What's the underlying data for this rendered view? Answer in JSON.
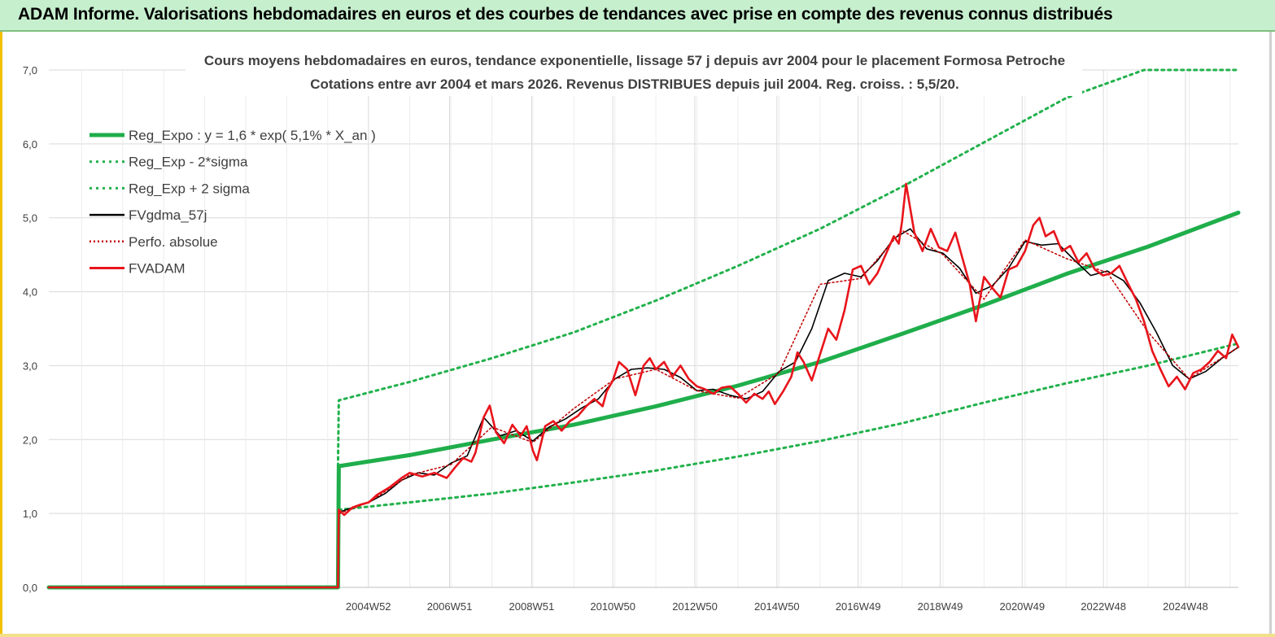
{
  "banner": {
    "title": "ADAM Informe. Valorisations hebdomadaires en euros et des courbes de tendances avec prise en compte des revenus connus distribués"
  },
  "colors": {
    "reg_expo": "#1fae4b",
    "sigma": "#22b14c",
    "fvgdma": "#000000",
    "perfo": "#c00000",
    "fvadam": "#e8141b",
    "grid": "#d9d9d9"
  },
  "chart_data": {
    "type": "line",
    "title": "Cours moyens hebdomadaires en euros, tendance exponentielle, lissage 57 j depuis avr 2004 pour le placement Formosa Petroche",
    "subtitle": "Cotations entre avr 2004 et mars 2026. Revenus DISTRIBUES depuis juil 2004. Reg. croiss. : 5,5/20.",
    "xlabel": "",
    "ylabel": "",
    "x_range": [
      1997.2,
      2026.2
    ],
    "ylim": [
      0,
      7
    ],
    "y_ticks": [
      0,
      1,
      2,
      3,
      4,
      5,
      6,
      7
    ],
    "y_tick_labels": [
      "0,0",
      "1,0",
      "2,0",
      "3,0",
      "4,0",
      "5,0",
      "6,0",
      "7,0"
    ],
    "x_ticks": [
      {
        "label": "2004W52",
        "x": 2004.99
      },
      {
        "label": "2006W51",
        "x": 2006.97
      },
      {
        "label": "2008W51",
        "x": 2008.97
      },
      {
        "label": "2010W50",
        "x": 2010.95
      },
      {
        "label": "2012W50",
        "x": 2012.95
      },
      {
        "label": "2014W50",
        "x": 2014.95
      },
      {
        "label": "2016W49",
        "x": 2016.93
      },
      {
        "label": "2018W49",
        "x": 2018.93
      },
      {
        "label": "2020W49",
        "x": 2020.93
      },
      {
        "label": "2022W48",
        "x": 2022.91
      },
      {
        "label": "2024W48",
        "x": 2024.91
      }
    ],
    "grid": true,
    "legend_position": "top-left",
    "series": [
      {
        "name": "Reg_Expo : y = 1,6 * exp( 5,1% *  X_an )",
        "style": "solid-thick",
        "x": [
          1997.2,
          2004.25,
          2004.27,
          2006.0,
          2008.0,
          2010.0,
          2012.0,
          2014.0,
          2016.0,
          2018.0,
          2020.0,
          2022.0,
          2024.0,
          2026.2
        ],
        "y": [
          0,
          0,
          1.64,
          1.79,
          2.0,
          2.2,
          2.45,
          2.73,
          3.05,
          3.43,
          3.82,
          4.24,
          4.61,
          5.07
        ]
      },
      {
        "name": "Reg_Exp - 2*sigma",
        "style": "dotted",
        "x": [
          2004.27,
          2006.0,
          2008.0,
          2010.0,
          2012.0,
          2014.0,
          2016.0,
          2018.0,
          2020.0,
          2022.0,
          2024.0,
          2026.2
        ],
        "y": [
          1.05,
          1.15,
          1.27,
          1.42,
          1.58,
          1.77,
          1.98,
          2.22,
          2.5,
          2.76,
          3.0,
          3.3
        ]
      },
      {
        "name": "Reg_Exp + 2 sigma",
        "style": "dotted",
        "x": [
          2004.25,
          2004.27,
          2006.0,
          2008.0,
          2010.0,
          2012.0,
          2014.0,
          2016.0,
          2018.0,
          2020.0,
          2022.0,
          2023.9,
          2026.2
        ],
        "y": [
          1.64,
          2.53,
          2.78,
          3.1,
          3.45,
          3.88,
          4.35,
          4.85,
          5.42,
          6.02,
          6.62,
          7.0,
          7.0
        ]
      },
      {
        "name": "FVgdma_57j",
        "style": "solid-thin",
        "x": [
          2004.3,
          2004.6,
          2005.0,
          2005.4,
          2005.8,
          2006.2,
          2006.6,
          2007.0,
          2007.4,
          2007.8,
          2008.2,
          2008.6,
          2009.0,
          2009.4,
          2009.8,
          2010.2,
          2010.6,
          2011.0,
          2011.4,
          2011.8,
          2012.2,
          2012.6,
          2013.0,
          2013.4,
          2013.8,
          2014.2,
          2014.6,
          2015.0,
          2015.4,
          2015.8,
          2016.2,
          2016.6,
          2017.0,
          2017.4,
          2017.8,
          2018.2,
          2018.6,
          2019.0,
          2019.4,
          2019.8,
          2020.2,
          2020.6,
          2021.0,
          2021.4,
          2021.8,
          2022.2,
          2022.6,
          2023.0,
          2023.4,
          2023.8,
          2024.2,
          2024.6,
          2025.0,
          2025.4,
          2025.8,
          2026.2
        ],
        "y": [
          1.02,
          1.08,
          1.15,
          1.27,
          1.45,
          1.55,
          1.52,
          1.68,
          1.78,
          2.3,
          2.05,
          2.12,
          1.98,
          2.17,
          2.28,
          2.43,
          2.55,
          2.82,
          2.95,
          2.97,
          2.95,
          2.84,
          2.66,
          2.68,
          2.6,
          2.55,
          2.65,
          2.92,
          3.05,
          3.5,
          4.15,
          4.25,
          4.2,
          4.42,
          4.72,
          4.85,
          4.58,
          4.52,
          4.32,
          3.98,
          4.08,
          4.32,
          4.68,
          4.63,
          4.65,
          4.43,
          4.22,
          4.28,
          4.15,
          3.85,
          3.45,
          3.0,
          2.82,
          2.92,
          3.1,
          3.25
        ]
      },
      {
        "name": "Perfo. absolue",
        "style": "dotted-dark",
        "x": [
          2004.3,
          2005.0,
          2006.0,
          2007.0,
          2008.0,
          2009.0,
          2010.0,
          2011.0,
          2012.0,
          2013.0,
          2014.0,
          2015.0,
          2016.0,
          2017.0,
          2018.0,
          2019.0,
          2020.0,
          2021.0,
          2022.0,
          2023.0,
          2024.0,
          2025.0,
          2026.2
        ],
        "y": [
          1.0,
          1.15,
          1.52,
          1.66,
          2.17,
          1.96,
          2.42,
          2.82,
          2.95,
          2.66,
          2.56,
          2.9,
          4.1,
          4.18,
          4.83,
          4.5,
          3.9,
          4.7,
          4.45,
          4.26,
          3.45,
          2.82,
          3.25
        ]
      },
      {
        "name": "FVADAM",
        "style": "solid-thick-red",
        "x": [
          1997.2,
          2004.25,
          2004.27,
          2004.4,
          2004.6,
          2004.8,
          2005.0,
          2005.2,
          2005.5,
          2005.8,
          2006.0,
          2006.3,
          2006.6,
          2006.9,
          2007.1,
          2007.3,
          2007.5,
          2007.6,
          2007.8,
          2007.95,
          2008.1,
          2008.3,
          2008.5,
          2008.7,
          2008.85,
          2009.0,
          2009.1,
          2009.3,
          2009.5,
          2009.7,
          2009.9,
          2010.1,
          2010.3,
          2010.5,
          2010.7,
          2010.8,
          2010.95,
          2011.1,
          2011.3,
          2011.5,
          2011.7,
          2011.85,
          2012.0,
          2012.2,
          2012.4,
          2012.6,
          2012.8,
          2013.0,
          2013.2,
          2013.4,
          2013.6,
          2013.8,
          2014.0,
          2014.2,
          2014.4,
          2014.6,
          2014.75,
          2014.9,
          2015.1,
          2015.3,
          2015.45,
          2015.6,
          2015.8,
          2016.0,
          2016.2,
          2016.4,
          2016.6,
          2016.8,
          2017.0,
          2017.2,
          2017.4,
          2017.6,
          2017.8,
          2017.92,
          2018.0,
          2018.1,
          2018.3,
          2018.5,
          2018.7,
          2018.9,
          2019.1,
          2019.3,
          2019.5,
          2019.65,
          2019.8,
          2020.0,
          2020.2,
          2020.4,
          2020.6,
          2020.8,
          2021.0,
          2021.2,
          2021.35,
          2021.5,
          2021.7,
          2021.9,
          2022.1,
          2022.3,
          2022.5,
          2022.7,
          2022.9,
          2023.1,
          2023.3,
          2023.5,
          2023.7,
          2023.9,
          2024.1,
          2024.3,
          2024.5,
          2024.7,
          2024.9,
          2025.1,
          2025.3,
          2025.5,
          2025.7,
          2025.9,
          2026.05,
          2026.2
        ],
        "y": [
          0,
          0,
          1.05,
          0.98,
          1.08,
          1.12,
          1.15,
          1.25,
          1.35,
          1.48,
          1.55,
          1.5,
          1.55,
          1.48,
          1.62,
          1.75,
          1.7,
          1.82,
          2.3,
          2.46,
          2.1,
          1.95,
          2.2,
          2.05,
          2.18,
          1.85,
          1.72,
          2.18,
          2.25,
          2.12,
          2.25,
          2.32,
          2.45,
          2.55,
          2.45,
          2.65,
          2.8,
          3.05,
          2.95,
          2.6,
          3.0,
          3.1,
          2.95,
          3.05,
          2.85,
          3.0,
          2.82,
          2.72,
          2.68,
          2.62,
          2.7,
          2.72,
          2.62,
          2.5,
          2.62,
          2.55,
          2.65,
          2.48,
          2.65,
          2.85,
          3.18,
          3.05,
          2.8,
          3.15,
          3.5,
          3.35,
          3.75,
          4.3,
          4.35,
          4.1,
          4.25,
          4.5,
          4.75,
          4.65,
          4.95,
          5.46,
          4.8,
          4.55,
          4.85,
          4.6,
          4.55,
          4.8,
          4.4,
          4.1,
          3.6,
          4.2,
          4.05,
          3.92,
          4.3,
          4.35,
          4.55,
          4.9,
          5.0,
          4.75,
          4.82,
          4.55,
          4.62,
          4.4,
          4.52,
          4.3,
          4.22,
          4.25,
          4.35,
          4.12,
          3.9,
          3.6,
          3.2,
          2.95,
          2.72,
          2.85,
          2.68,
          2.9,
          2.95,
          3.05,
          3.2,
          3.1,
          3.42,
          3.25
        ]
      }
    ]
  }
}
